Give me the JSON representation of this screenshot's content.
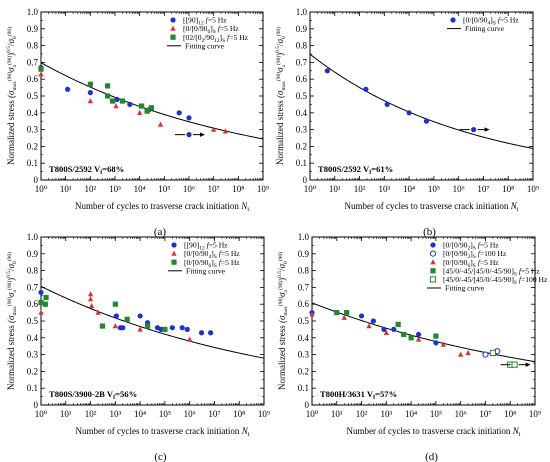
{
  "chart_data": [
    {
      "type": "scatter",
      "panel_label": "(a)",
      "xlabel": "Number of cycles to trasverse crack initiation",
      "xlabel_sym": "N",
      "xlabel_sub": "i",
      "ylabel_main": "Normalized stress",
      "ylabel_formula": "(σ",
      "x_log": true,
      "xlim": [
        1,
        1000000000
      ],
      "ylim": [
        0,
        1.0
      ],
      "x_ticks": [
        "10⁰",
        "10¹",
        "10²",
        "10³",
        "10⁴",
        "10⁵",
        "10⁶",
        "10⁷",
        "10⁸",
        "10⁹"
      ],
      "y_ticks": [
        "0",
        "0.1",
        "0.2",
        "0.3",
        "0.4",
        "0.5",
        "0.6",
        "0.7",
        "0.8",
        "0.9",
        "1.0"
      ],
      "annotation": "T800S/2592 V",
      "annotation_sub": "f",
      "annotation_tail": "=68%",
      "legend_position": "top-right",
      "series": [
        {
          "name": "[90]12 f=5 Hz",
          "marker": "circle",
          "color": "#1f2fd6",
          "points": [
            [
              1,
              0.67
            ],
            [
              12,
              0.54
            ],
            [
              100,
              0.52
            ],
            [
              1200,
              0.48
            ],
            [
              4000,
              0.45
            ],
            [
              25000,
              0.42
            ],
            [
              400000,
              0.4
            ],
            [
              1000000,
              0.37
            ]
          ],
          "runouts": [
            [
              1000000,
              0.27
            ]
          ]
        },
        {
          "name": "[0/906]S f=5 Hz",
          "marker": "triangle",
          "color": "#e0302a",
          "points": [
            [
              1,
              0.63
            ],
            [
              100,
              0.47
            ],
            [
              1100,
              0.44
            ],
            [
              10000,
              0.4
            ],
            [
              70000,
              0.33
            ],
            [
              10000000,
              0.3
            ],
            [
              30000000,
              0.29
            ]
          ],
          "runouts": []
        },
        {
          "name": "[02/9012]S f=5 Hz",
          "marker": "square",
          "color": "#1e8a2a",
          "points": [
            [
              1,
              0.66
            ],
            [
              100,
              0.57
            ],
            [
              500,
              0.56
            ],
            [
              500,
              0.5
            ],
            [
              800,
              0.47
            ],
            [
              2000,
              0.47
            ],
            [
              12000,
              0.44
            ],
            [
              20000,
              0.41
            ],
            [
              30000,
              0.43
            ]
          ],
          "runouts": []
        }
      ],
      "fit": {
        "name": "Fitting curve",
        "a": 0.6981,
        "b": 0.05064
      }
    },
    {
      "type": "scatter",
      "panel_label": "(b)",
      "xlabel": "Number of cycles to trasverse crack initiation",
      "xlabel_sym": "N",
      "xlabel_sub": "i",
      "ylabel_main": "Normalized stress",
      "ylabel_formula": "(σ",
      "x_log": true,
      "xlim": [
        1,
        1000000000
      ],
      "ylim": [
        0,
        1.0
      ],
      "x_ticks": [
        "10⁰",
        "10¹",
        "10²",
        "10³",
        "10⁴",
        "10⁵",
        "10⁶",
        "10⁷",
        "10⁸",
        "10⁹"
      ],
      "y_ticks": [
        "0",
        "0.1",
        "0.2",
        "0.3",
        "0.4",
        "0.5",
        "0.6",
        "0.7",
        "0.8",
        "0.9",
        "1.0"
      ],
      "annotation": "T800S/2592 V",
      "annotation_sub": "f",
      "annotation_tail": "=61%",
      "legend_position": "top-right",
      "series": [
        {
          "name": "[0/904]S f=5 Hz",
          "marker": "circle",
          "color": "#1f2fd6",
          "points": [
            [
              5,
              0.65
            ],
            [
              180,
              0.54
            ],
            [
              1300,
              0.45
            ],
            [
              10000,
              0.4
            ],
            [
              50000,
              0.35
            ]
          ],
          "runouts": [
            [
              4000000,
              0.3
            ]
          ]
        }
      ],
      "fit": {
        "name": "Fitting curve",
        "a": 0.7487,
        "b": 0.06679
      }
    },
    {
      "type": "scatter",
      "panel_label": "(c)",
      "xlabel": "Number of cycles to trasverse crack initiation",
      "xlabel_sym": "N",
      "xlabel_sub": "i",
      "ylabel_main": "Normalized stress",
      "ylabel_formula": "(σ",
      "x_log": true,
      "xlim": [
        1,
        1000000000
      ],
      "ylim": [
        0,
        1.0
      ],
      "x_ticks": [
        "10⁰",
        "10¹",
        "10²",
        "10³",
        "10⁴",
        "10⁵",
        "10⁶",
        "10⁷",
        "10⁸",
        "10⁹"
      ],
      "y_ticks": [
        "0",
        "0.1",
        "0.2",
        "0.3",
        "0.4",
        "0.5",
        "0.6",
        "0.7",
        "0.8",
        "0.9",
        "1.0"
      ],
      "annotation": "T800S/3900-2B V",
      "annotation_sub": "f",
      "annotation_tail": "=56%",
      "legend_position": "top-right",
      "series": [
        {
          "name": "[90]12 f=5 Hz",
          "marker": "circle",
          "color": "#1f2fd6",
          "points": [
            [
              1,
              0.67
            ],
            [
              1100,
              0.53
            ],
            [
              1600,
              0.46
            ],
            [
              2000,
              0.46
            ],
            [
              10000,
              0.53
            ],
            [
              20000,
              0.49
            ],
            [
              50000,
              0.46
            ],
            [
              70000,
              0.45
            ],
            [
              200000,
              0.46
            ],
            [
              500000,
              0.46
            ],
            [
              800000,
              0.45
            ],
            [
              3000000,
              0.43
            ],
            [
              7000000,
              0.43
            ]
          ],
          "runouts": []
        },
        {
          "name": "[0/904]S f=5 Hz",
          "marker": "triangle",
          "color": "#e0302a",
          "points": [
            [
              1,
              0.55
            ],
            [
              100,
              0.66
            ],
            [
              100,
              0.63
            ],
            [
              110,
              0.59
            ],
            [
              200,
              0.55
            ],
            [
              1000,
              0.47
            ],
            [
              10000,
              0.45
            ],
            [
              1000000,
              0.39
            ]
          ],
          "runouts": []
        },
        {
          "name": "[0/906]S f=5 Hz",
          "marker": "square",
          "color": "#1e8a2a",
          "points": [
            [
              1,
              0.61
            ],
            [
              1.5,
              0.6
            ],
            [
              1.6,
              0.64
            ],
            [
              300,
              0.47
            ],
            [
              1000,
              0.6
            ],
            [
              3000,
              0.51
            ],
            [
              20000,
              0.47
            ],
            [
              100000,
              0.45
            ]
          ],
          "runouts": []
        }
      ],
      "fit": {
        "name": "Fitting curve",
        "a": 0.7062,
        "b": 0.04486
      }
    },
    {
      "type": "scatter",
      "panel_label": "(d)",
      "xlabel": "Number of cycles to trasverse crack initiation",
      "xlabel_sym": "N",
      "xlabel_sub": "i",
      "ylabel_main": "Normalized stress",
      "ylabel_formula": "(σ",
      "x_log": true,
      "xlim": [
        1,
        1000000000
      ],
      "ylim": [
        0,
        1.0
      ],
      "x_ticks": [
        "10⁰",
        "10¹",
        "10²",
        "10³",
        "10⁴",
        "10⁵",
        "10⁶",
        "10⁷",
        "10⁸",
        "10⁹"
      ],
      "y_ticks": [
        "0",
        "0.1",
        "0.2",
        "0.3",
        "0.4",
        "0.5",
        "0.6",
        "0.7",
        "0.8",
        "0.9",
        "1.0"
      ],
      "annotation": "T800H/3631 V",
      "annotation_sub": "f",
      "annotation_tail": "=57%",
      "legend_position": "top-right",
      "series": [
        {
          "name": "[0/902]S f=5 Hz",
          "marker": "circle",
          "color": "#1f2fd6",
          "points": [
            [
              1,
              0.55
            ],
            [
              100,
              0.53
            ],
            [
              300,
              0.5
            ],
            [
              800,
              0.45
            ],
            [
              2000,
              0.45
            ],
            [
              20000,
              0.42
            ],
            [
              100000,
              0.37
            ]
          ],
          "runouts": []
        },
        {
          "name": "[0/902]S f=100 Hz",
          "marker": "circle-open",
          "color": "#1f2fd6",
          "points": [
            [
              10000000,
              0.3
            ],
            [
              30000000,
              0.32
            ]
          ],
          "runouts": []
        },
        {
          "name": "[0/906]S f=5 Hz",
          "marker": "triangle",
          "color": "#e0302a",
          "points": [
            [
              1,
              0.54
            ],
            [
              20,
              0.52
            ],
            [
              200,
              0.47
            ],
            [
              1000,
              0.43
            ],
            [
              20000,
              0.39
            ],
            [
              200000,
              0.36
            ],
            [
              1000000,
              0.3
            ],
            [
              2000000,
              0.31
            ]
          ],
          "runouts": []
        },
        {
          "name": "[45/0/-45/90]S f=5 Hz",
          "marker": "square",
          "color": "#1e8a2a",
          "points": [
            [
              10,
              0.55
            ],
            [
              25,
              0.55
            ],
            [
              3000,
              0.48
            ],
            [
              5000,
              0.42
            ],
            [
              10000,
              0.4
            ],
            [
              100000,
              0.41
            ]
          ],
          "runouts": []
        },
        {
          "name": "[45/0/-45/90]S f=100 Hz",
          "marker": "square-open",
          "color": "#1e8a2a",
          "points": [
            [
              20000000,
              0.31
            ],
            [
              100000000,
              0.24
            ]
          ],
          "runouts": [
            [
              150000000,
              0.24
            ]
          ]
        }
      ],
      "fit": {
        "name": "Fitting curve",
        "a": 0.6081,
        "b": 0.04136
      }
    }
  ]
}
